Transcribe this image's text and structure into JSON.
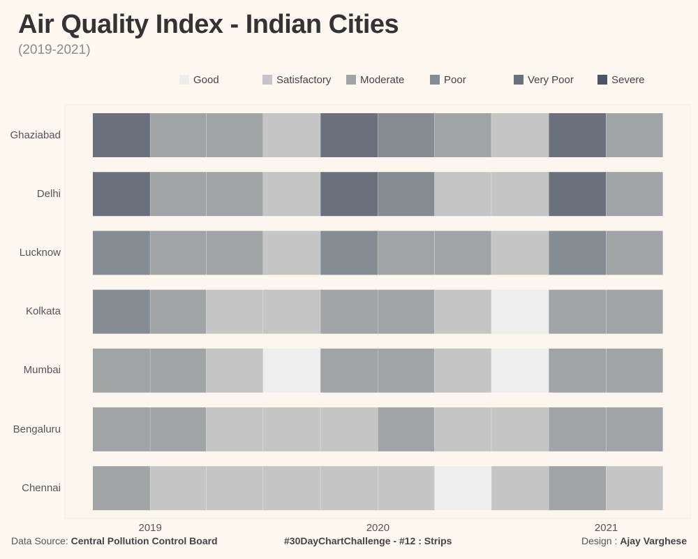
{
  "title": "Air Quality Index - Indian Cities",
  "subtitle": "(2019-2021)",
  "footer": {
    "source_label": "Data Source:",
    "source_name": "Central Pollution Control Board",
    "challenge": "#30DayChartChallenge - #12 : Strips",
    "design_label": "Design :",
    "designer": "Ajay Varghese"
  },
  "chart_data": {
    "type": "strips",
    "title": "Air Quality Index - Indian Cities",
    "subtitle": "(2019-2021)",
    "categories": [
      "Good",
      "Satisfactory",
      "Moderate",
      "Poor",
      "Very Poor",
      "Severe"
    ],
    "colors": [
      "#eeeeee",
      "#c4c5c4",
      "#a0a4a5",
      "#858c92",
      "#6a717c",
      "#4e5464"
    ],
    "legend_position": "top",
    "x_ticks": [
      "2019",
      "2020",
      "2021"
    ],
    "x_range": [
      "2018-10-01",
      "2021-04-01"
    ],
    "cities": [
      {
        "name": "Ghaziabad",
        "segments": [
          {
            "start": "2018-10-01",
            "end": "2018-12-31",
            "category": "Very Poor"
          },
          {
            "start": "2019-01-01",
            "end": "2019-03-31",
            "category": "Moderate"
          },
          {
            "start": "2019-04-01",
            "end": "2019-06-30",
            "category": "Moderate"
          },
          {
            "start": "2019-07-01",
            "end": "2019-09-30",
            "category": "Satisfactory"
          },
          {
            "start": "2019-10-01",
            "end": "2019-12-31",
            "category": "Very Poor"
          },
          {
            "start": "2020-01-01",
            "end": "2020-03-31",
            "category": "Poor"
          },
          {
            "start": "2020-04-01",
            "end": "2020-06-30",
            "category": "Moderate"
          },
          {
            "start": "2020-07-01",
            "end": "2020-09-30",
            "category": "Satisfactory"
          },
          {
            "start": "2020-10-01",
            "end": "2020-12-31",
            "category": "Very Poor"
          },
          {
            "start": "2021-01-01",
            "end": "2021-04-01",
            "category": "Moderate"
          }
        ]
      },
      {
        "name": "Delhi",
        "segments": [
          {
            "start": "2018-10-01",
            "end": "2018-12-31",
            "category": "Very Poor"
          },
          {
            "start": "2019-01-01",
            "end": "2019-03-31",
            "category": "Moderate"
          },
          {
            "start": "2019-04-01",
            "end": "2019-06-30",
            "category": "Moderate"
          },
          {
            "start": "2019-07-01",
            "end": "2019-09-30",
            "category": "Satisfactory"
          },
          {
            "start": "2019-10-01",
            "end": "2019-12-31",
            "category": "Very Poor"
          },
          {
            "start": "2020-01-01",
            "end": "2020-03-31",
            "category": "Poor"
          },
          {
            "start": "2020-04-01",
            "end": "2020-06-30",
            "category": "Satisfactory"
          },
          {
            "start": "2020-07-01",
            "end": "2020-09-30",
            "category": "Satisfactory"
          },
          {
            "start": "2020-10-01",
            "end": "2020-12-31",
            "category": "Very Poor"
          },
          {
            "start": "2021-01-01",
            "end": "2021-04-01",
            "category": "Moderate"
          }
        ]
      },
      {
        "name": "Lucknow",
        "segments": [
          {
            "start": "2018-10-01",
            "end": "2018-12-31",
            "category": "Poor"
          },
          {
            "start": "2019-01-01",
            "end": "2019-03-31",
            "category": "Moderate"
          },
          {
            "start": "2019-04-01",
            "end": "2019-06-30",
            "category": "Moderate"
          },
          {
            "start": "2019-07-01",
            "end": "2019-09-30",
            "category": "Satisfactory"
          },
          {
            "start": "2019-10-01",
            "end": "2019-12-31",
            "category": "Poor"
          },
          {
            "start": "2020-01-01",
            "end": "2020-03-31",
            "category": "Moderate"
          },
          {
            "start": "2020-04-01",
            "end": "2020-06-30",
            "category": "Moderate"
          },
          {
            "start": "2020-07-01",
            "end": "2020-09-30",
            "category": "Satisfactory"
          },
          {
            "start": "2020-10-01",
            "end": "2020-12-31",
            "category": "Poor"
          },
          {
            "start": "2021-01-01",
            "end": "2021-04-01",
            "category": "Moderate"
          }
        ]
      },
      {
        "name": "Kolkata",
        "segments": [
          {
            "start": "2018-10-01",
            "end": "2018-12-31",
            "category": "Poor"
          },
          {
            "start": "2019-01-01",
            "end": "2019-03-31",
            "category": "Moderate"
          },
          {
            "start": "2019-04-01",
            "end": "2019-06-30",
            "category": "Satisfactory"
          },
          {
            "start": "2019-07-01",
            "end": "2019-09-30",
            "category": "Satisfactory"
          },
          {
            "start": "2019-10-01",
            "end": "2019-12-31",
            "category": "Moderate"
          },
          {
            "start": "2020-01-01",
            "end": "2020-03-31",
            "category": "Moderate"
          },
          {
            "start": "2020-04-01",
            "end": "2020-06-30",
            "category": "Satisfactory"
          },
          {
            "start": "2020-07-01",
            "end": "2020-09-30",
            "category": "Good"
          },
          {
            "start": "2020-10-01",
            "end": "2020-12-31",
            "category": "Moderate"
          },
          {
            "start": "2021-01-01",
            "end": "2021-04-01",
            "category": "Moderate"
          }
        ]
      },
      {
        "name": "Mumbai",
        "segments": [
          {
            "start": "2018-10-01",
            "end": "2018-12-31",
            "category": "Moderate"
          },
          {
            "start": "2019-01-01",
            "end": "2019-03-31",
            "category": "Moderate"
          },
          {
            "start": "2019-04-01",
            "end": "2019-06-30",
            "category": "Satisfactory"
          },
          {
            "start": "2019-07-01",
            "end": "2019-09-30",
            "category": "Good"
          },
          {
            "start": "2019-10-01",
            "end": "2019-12-31",
            "category": "Moderate"
          },
          {
            "start": "2020-01-01",
            "end": "2020-03-31",
            "category": "Moderate"
          },
          {
            "start": "2020-04-01",
            "end": "2020-06-30",
            "category": "Satisfactory"
          },
          {
            "start": "2020-07-01",
            "end": "2020-09-30",
            "category": "Good"
          },
          {
            "start": "2020-10-01",
            "end": "2020-12-31",
            "category": "Moderate"
          },
          {
            "start": "2021-01-01",
            "end": "2021-04-01",
            "category": "Moderate"
          }
        ]
      },
      {
        "name": "Bengaluru",
        "segments": [
          {
            "start": "2018-10-01",
            "end": "2018-12-31",
            "category": "Moderate"
          },
          {
            "start": "2019-01-01",
            "end": "2019-03-31",
            "category": "Moderate"
          },
          {
            "start": "2019-04-01",
            "end": "2019-06-30",
            "category": "Satisfactory"
          },
          {
            "start": "2019-07-01",
            "end": "2019-09-30",
            "category": "Satisfactory"
          },
          {
            "start": "2019-10-01",
            "end": "2019-12-31",
            "category": "Satisfactory"
          },
          {
            "start": "2020-01-01",
            "end": "2020-03-31",
            "category": "Moderate"
          },
          {
            "start": "2020-04-01",
            "end": "2020-06-30",
            "category": "Satisfactory"
          },
          {
            "start": "2020-07-01",
            "end": "2020-09-30",
            "category": "Satisfactory"
          },
          {
            "start": "2020-10-01",
            "end": "2020-12-31",
            "category": "Moderate"
          },
          {
            "start": "2021-01-01",
            "end": "2021-04-01",
            "category": "Moderate"
          }
        ]
      },
      {
        "name": "Chennai",
        "segments": [
          {
            "start": "2018-10-01",
            "end": "2018-12-31",
            "category": "Moderate"
          },
          {
            "start": "2019-01-01",
            "end": "2019-03-31",
            "category": "Satisfactory"
          },
          {
            "start": "2019-04-01",
            "end": "2019-06-30",
            "category": "Satisfactory"
          },
          {
            "start": "2019-07-01",
            "end": "2019-09-30",
            "category": "Satisfactory"
          },
          {
            "start": "2019-10-01",
            "end": "2019-12-31",
            "category": "Satisfactory"
          },
          {
            "start": "2020-01-01",
            "end": "2020-03-31",
            "category": "Satisfactory"
          },
          {
            "start": "2020-04-01",
            "end": "2020-06-30",
            "category": "Good"
          },
          {
            "start": "2020-07-01",
            "end": "2020-09-30",
            "category": "Satisfactory"
          },
          {
            "start": "2020-10-01",
            "end": "2020-12-31",
            "category": "Moderate"
          },
          {
            "start": "2021-01-01",
            "end": "2021-04-01",
            "category": "Satisfactory"
          }
        ]
      }
    ]
  }
}
